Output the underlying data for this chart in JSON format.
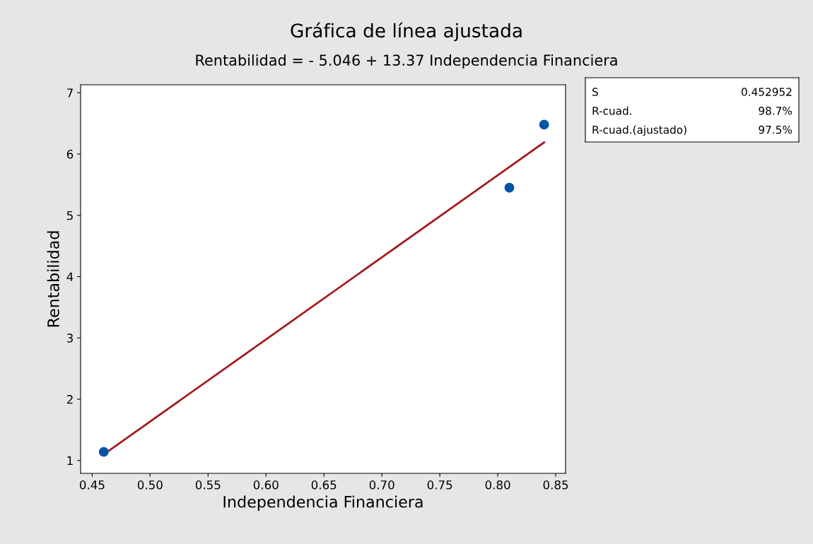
{
  "chart_data": {
    "type": "scatter",
    "title": "Gráfica de línea ajustada",
    "subtitle": "Rentabilidad = - 5.046 + 13.37 Independencia Financiera",
    "xlabel": "Independencia Financiera",
    "ylabel": "Rentabilidad",
    "x": [
      0.46,
      0.81,
      0.84
    ],
    "series": [
      {
        "color": "#0054a6",
        "marker": "circle",
        "values": [
          1.14,
          5.45,
          6.48
        ]
      },
      {
        "type": "line",
        "color": "#a31a1f",
        "x": [
          0.46,
          0.84
        ],
        "values": [
          1.1,
          6.19
        ],
        "line_style": "solid"
      }
    ],
    "xlim": [
      0.44,
      0.8585
    ],
    "ylim": [
      0.79,
      7.13
    ],
    "xticks": [
      0.45,
      {
        "value": 0.5,
        "label": "0.50"
      },
      0.55,
      {
        "value": 0.6,
        "label": "0.60"
      },
      0.65,
      {
        "value": 0.7,
        "label": "0.70"
      },
      0.75,
      {
        "value": 0.8,
        "label": "0.80"
      },
      0.85
    ],
    "yticks": [
      1,
      2,
      3,
      4,
      5,
      6,
      7
    ],
    "grid": false,
    "legend": false,
    "annotations": [
      "S",
      "0.452952",
      "R-cuad.",
      "98.7%",
      "R-cuad.(ajustado)",
      "97.5%"
    ]
  }
}
